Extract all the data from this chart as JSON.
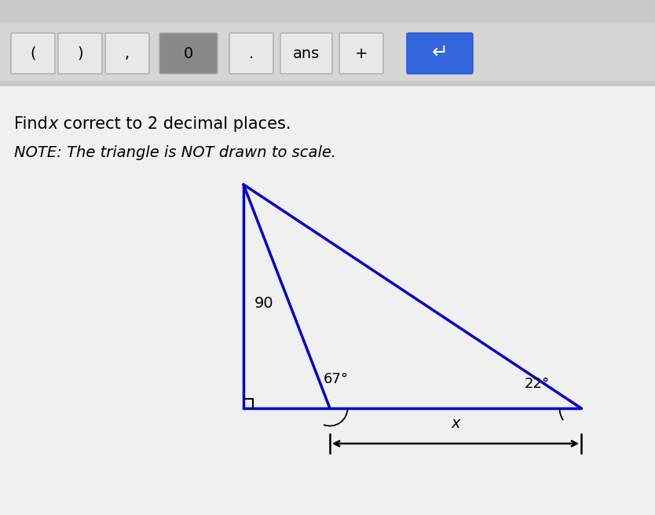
{
  "title_line1": "Find x correct to 2 decimal places.",
  "title_line2": "NOTE: The triangle is NOT drawn to scale.",
  "triangle_color": "#0000CC",
  "line_width": 2.5,
  "background_color": "#e8e8e8",
  "content_bg": "#f0f0f0",
  "label_90": "90",
  "label_67": "67°",
  "label_22": "22°",
  "label_x": "x",
  "calc_bg": "#d0d0d0",
  "calc_btn_bg": "#e0e0e0",
  "calc_btn_dark": "#888888",
  "calc_enter_color": "#3366dd",
  "text_color": "#000000"
}
